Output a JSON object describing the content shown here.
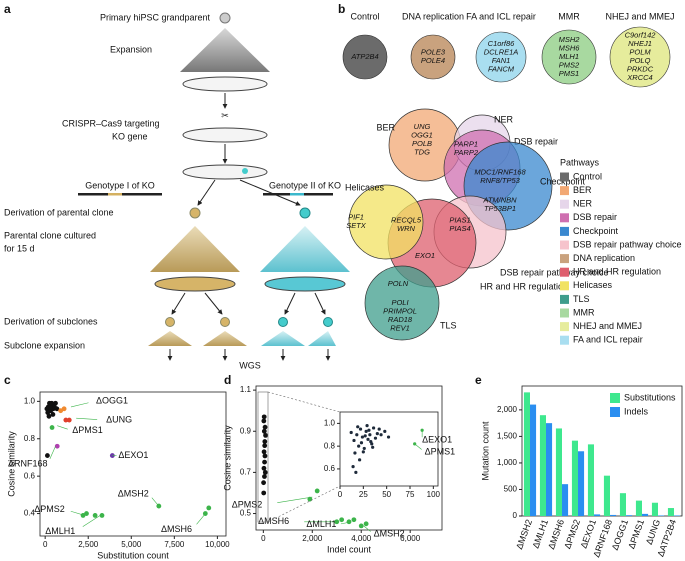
{
  "panel_a": {
    "label": "a",
    "grandparent": "Primary hiPSC grandparent",
    "expansion": "Expansion",
    "targeting": [
      "CRISPR–Cas9 targeting",
      "KO gene"
    ],
    "genotype_1": "Genotype I of KO",
    "genotype_2": "Genotype II of KO",
    "parental_derivation": "Derivation of parental clone",
    "parental_culture": [
      "Parental clone cultured",
      "for 15 d"
    ],
    "subclone_derivation": "Derivation of subclones",
    "subclone_expansion": "Subclone expansion",
    "wgs": "WGS"
  },
  "panel_b": {
    "label": "b",
    "groups": [
      {
        "name": "Control",
        "color": "#6b6b6b",
        "genes": [
          "ATP2B4"
        ]
      },
      {
        "name": "DNA replication",
        "color": "#c9a27e",
        "genes": [
          "POLE3",
          "POLE4"
        ]
      },
      {
        "name": "FA and ICL repair",
        "color": "#a9def0",
        "genes": [
          "C1orf86",
          "DCLRE1A",
          "FAN1",
          "FANCM"
        ]
      },
      {
        "name": "MMR",
        "color": "#a8d9a0",
        "genes": [
          "MSH2",
          "MSH6",
          "MLH1",
          "PMS2",
          "PMS1"
        ]
      },
      {
        "name": "NHEJ and MMEJ",
        "color": "#e6ec9c",
        "genes": [
          "C9orf142",
          "NHEJ1",
          "POLM",
          "POLQ",
          "PRKDC",
          "XRCC4"
        ]
      }
    ],
    "venn": [
      {
        "name": "BER",
        "color": "#f2a874"
      },
      {
        "name": "NER",
        "color": "#e6d6ea"
      },
      {
        "name": "DSB repair",
        "color": "#cf6fb0"
      },
      {
        "name": "Checkpoint",
        "color": "#3a88cf"
      },
      {
        "name": "DSB repair pathway choice",
        "color": "#f6c3cc"
      },
      {
        "name": "HR and HR regulation",
        "color": "#de5f6e"
      },
      {
        "name": "Helicases",
        "color": "#f1e262"
      },
      {
        "name": "TLS",
        "color": "#3f9d8c"
      }
    ],
    "gene_sets": [
      [
        "UNG",
        "OGG1",
        "POLB",
        "TDG"
      ],
      [
        "PARP1",
        "PARP2"
      ],
      [
        "MDC1/RNF168",
        "RNF8/TP53"
      ],
      [
        "ATM/NBN",
        "TP53BP1"
      ],
      [
        "PIF1",
        "SETX"
      ],
      [
        "RECQL5",
        "WRN"
      ],
      [
        "PIAS1",
        "PIAS4"
      ],
      [
        "EXO1"
      ],
      [
        "POLN"
      ],
      [
        "POLI",
        "PRIMPOL",
        "RAD18",
        "REV1"
      ]
    ],
    "legend_title": "Pathways",
    "legend": [
      {
        "name": "Control",
        "color": "#6b6b6b"
      },
      {
        "name": "BER",
        "color": "#f2a874"
      },
      {
        "name": "NER",
        "color": "#e6d6ea"
      },
      {
        "name": "DSB repair",
        "color": "#cf6fb0"
      },
      {
        "name": "Checkpoint",
        "color": "#3a88cf"
      },
      {
        "name": "DSB repair pathway choice",
        "color": "#f6c3cc"
      },
      {
        "name": "DNA replication",
        "color": "#c9a27e"
      },
      {
        "name": "HR and HR regulation",
        "color": "#de5f6e"
      },
      {
        "name": "Helicases",
        "color": "#f1e262"
      },
      {
        "name": "TLS",
        "color": "#3f9d8c"
      },
      {
        "name": "MMR",
        "color": "#a8d9a0"
      },
      {
        "name": "NHEJ and MMEJ",
        "color": "#e6ec9c"
      },
      {
        "name": "FA and ICL repair",
        "color": "#a9def0"
      }
    ]
  },
  "chart_data": [
    {
      "type": "scatter",
      "label": "c",
      "x_label": "Substitution count",
      "y_label": "Cosine similarity",
      "xlim": [
        -300,
        10500
      ],
      "xticks": [
        0,
        {
          "value": 2500,
          "label": "2,500"
        },
        {
          "value": 5000,
          "label": "5,000"
        },
        {
          "value": 7500,
          "label": "7,500"
        },
        {
          "value": 10000,
          "label": "10,000"
        }
      ],
      "ylim": [
        0.28,
        1.05
      ],
      "yticks": [
        0.4,
        0.6,
        0.8,
        {
          "value": 1.0,
          "label": "1.0"
        }
      ],
      "series": [
        {
          "color": "#111111",
          "x": [
            100,
            180,
            250,
            320,
            400,
            470,
            540,
            600,
            680,
            150,
            300,
            450,
            220,
            380,
            130
          ],
          "values": [
            0.96,
            0.97,
            0.99,
            0.95,
            0.98,
            0.96,
            0.97,
            0.99,
            0.96,
            0.94,
            0.97,
            0.93,
            0.92,
            0.99,
            0.71
          ]
        },
        {
          "color": "#f08a30",
          "x": [
            900,
            1100
          ],
          "values": [
            0.95,
            0.96
          ]
        },
        {
          "color": "#e0402c",
          "x": [
            1200,
            1400
          ],
          "values": [
            0.9,
            0.9
          ]
        },
        {
          "color": "#b040b0",
          "x": [
            700
          ],
          "values": [
            0.76
          ]
        },
        {
          "color": "#6a3aa8",
          "x": [
            3900
          ],
          "values": [
            0.71
          ]
        },
        {
          "color": "#3cb44a",
          "x": [
            400,
            2200,
            2400,
            2900,
            3300,
            6600,
            9300,
            9500
          ],
          "values": [
            0.86,
            0.39,
            0.4,
            0.39,
            0.39,
            0.44,
            0.4,
            0.43
          ]
        }
      ],
      "annotations": [
        "ΔOGG1",
        "ΔUNG",
        "ΔPMS1",
        "ΔRNF168",
        "ΔEXO1",
        "ΔPMS2",
        "ΔMLH1",
        "ΔMSH2",
        "ΔMSH6"
      ]
    },
    {
      "type": "scatter",
      "label": "d",
      "x_label": "Indel count",
      "y_label": "Cosine similarity",
      "xlim": [
        -300,
        7300
      ],
      "xticks": [
        0,
        {
          "value": 2000,
          "label": "2,000"
        },
        {
          "value": 4000,
          "label": "4,000"
        },
        {
          "value": 6000,
          "label": "6,000"
        }
      ],
      "ylim": [
        0.42,
        1.12
      ],
      "yticks": [
        0.5,
        0.7,
        0.9,
        1.1
      ],
      "series": [
        {
          "color": "#111111",
          "x": [
            20,
            40,
            60,
            30,
            50,
            80,
            10,
            70,
            90,
            35,
            55,
            25,
            45,
            65,
            15
          ],
          "values": [
            0.95,
            0.9,
            0.85,
            0.8,
            0.75,
            0.7,
            0.65,
            0.92,
            0.88,
            0.97,
            0.83,
            0.72,
            0.68,
            0.78,
            0.6
          ]
        },
        {
          "color": "#3cb44a",
          "x": [
            1900,
            2200,
            3000,
            3200,
            3500,
            3700,
            4000,
            4200
          ],
          "values": [
            0.57,
            0.61,
            0.46,
            0.47,
            0.46,
            0.47,
            0.44,
            0.45
          ]
        }
      ],
      "annotations": [
        "ΔPMS2",
        "ΔMSH6",
        "ΔMLH1",
        "ΔMSH2"
      ],
      "inset": {
        "xlim": [
          0,
          105
        ],
        "xticks": [
          0,
          25,
          50,
          75,
          100
        ],
        "ylim": [
          0.45,
          1.1
        ],
        "yticks": [
          0.6,
          0.8,
          {
            "value": 1.0,
            "label": "1.0"
          }
        ],
        "series": [
          {
            "color": "#1e2a3a",
            "x": [
              12,
              15,
              18,
              20,
              22,
              24,
              26,
              28,
              30,
              32,
              34,
              36,
              38,
              40,
              16,
              19,
              23,
              27,
              31,
              35,
              21,
              25,
              29,
              33,
              14,
              44,
              48,
              52,
              17,
              42
            ],
            "values": [
              0.92,
              0.85,
              0.9,
              0.8,
              0.95,
              0.88,
              0.78,
              0.93,
              0.86,
              0.9,
              0.82,
              0.96,
              0.87,
              0.91,
              0.74,
              0.97,
              0.83,
              0.89,
              0.94,
              0.79,
              0.68,
              0.75,
              0.98,
              0.84,
              0.62,
              0.9,
              0.93,
              0.88,
              0.57,
              0.95
            ]
          },
          {
            "color": "#3cb44a",
            "x": [
              80,
              88
            ],
            "values": [
              0.82,
              0.94
            ]
          }
        ],
        "annotations": [
          "ΔEXO1",
          "ΔPMS1"
        ]
      }
    },
    {
      "type": "bar",
      "label": "e",
      "y_label": "Mutation count",
      "categories": [
        "ΔMSH2",
        "ΔMLH1",
        "ΔMSH6",
        "ΔPMS2",
        "ΔEXO1",
        "ΔRNF168",
        "ΔOGG1",
        "ΔPMS1",
        "ΔUNG",
        "ΔATP2B4"
      ],
      "ylim": [
        0,
        2450
      ],
      "yticks": [
        0,
        500,
        {
          "value": 1000,
          "label": "1,000"
        },
        {
          "value": 1500,
          "label": "1,500"
        },
        {
          "value": 2000,
          "label": "2,000"
        }
      ],
      "series": [
        {
          "name": "Substitutions",
          "color": "#3ee88e",
          "values": [
            2330,
            1900,
            1650,
            1420,
            1350,
            760,
            430,
            290,
            250,
            150
          ]
        },
        {
          "name": "Indels",
          "color": "#2a8ef0",
          "values": [
            2100,
            1750,
            600,
            1220,
            30,
            20,
            15,
            40,
            10,
            10
          ]
        }
      ]
    }
  ]
}
